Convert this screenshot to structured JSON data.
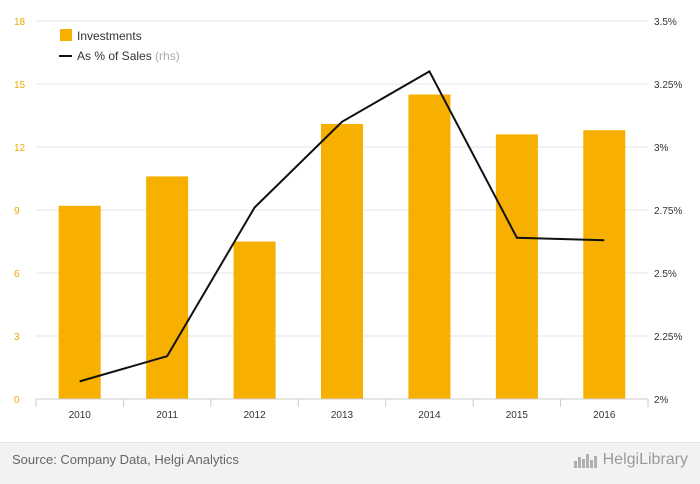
{
  "chart_data": {
    "type": "bar",
    "categories": [
      "2010",
      "2011",
      "2012",
      "2013",
      "2014",
      "2015",
      "2016"
    ],
    "series": [
      {
        "name": "Investments",
        "type": "bar",
        "axis": "left",
        "color": "#f7b000",
        "values": [
          9.2,
          10.6,
          7.5,
          13.1,
          14.5,
          12.6,
          12.8
        ]
      },
      {
        "name": "As % of Sales",
        "type": "line",
        "axis": "right",
        "color": "#111111",
        "values": [
          2.07,
          2.17,
          2.76,
          3.1,
          3.3,
          2.64,
          2.63
        ]
      }
    ],
    "y_left": {
      "min": 0,
      "max": 18,
      "ticks": [
        "0",
        "3",
        "6",
        "9",
        "12",
        "15",
        "18"
      ]
    },
    "y_right": {
      "min": 2,
      "max": 3.5,
      "ticks": [
        "2%",
        "2.25%",
        "2.5%",
        "2.75%",
        "3%",
        "3.25%",
        "3.5%"
      ]
    },
    "grid": true,
    "legend_position": "top-left"
  },
  "legend": {
    "investments": "Investments",
    "pct_sales": "As % of Sales",
    "pct_sales_note": "(rhs)"
  },
  "footer": {
    "source": "Source: Company Data, Helgi Analytics",
    "brand": "HelgiLibrary"
  }
}
